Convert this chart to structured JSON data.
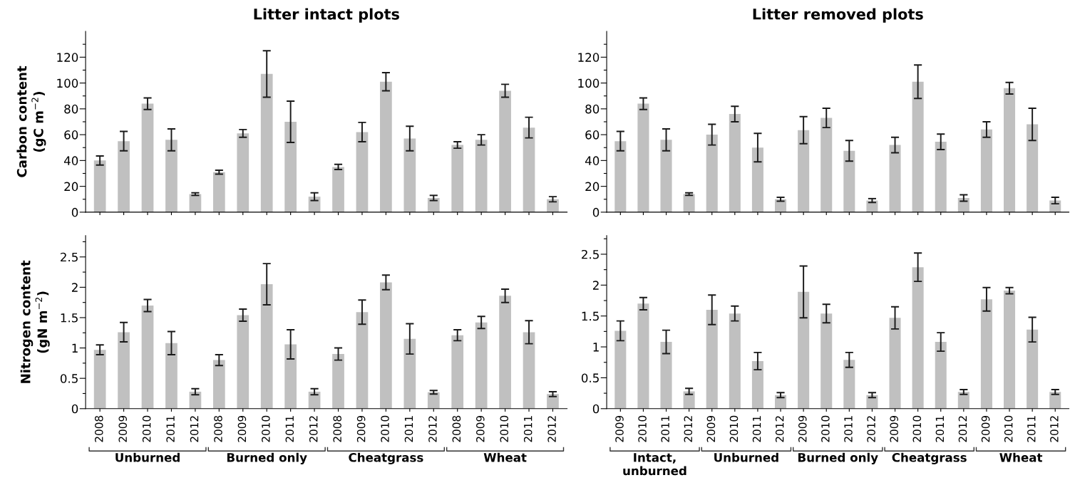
{
  "chart_data": [
    {
      "type": "bar",
      "title": "Litter intact plots",
      "ylabel": "Carbon content\n(gC m$^{−2}$)",
      "categories": [
        "2008",
        "2009",
        "2010",
        "2011",
        "2012",
        "2008",
        "2009",
        "2010",
        "2011",
        "2012",
        "2008",
        "2009",
        "2010",
        "2011",
        "2012",
        "2008",
        "2009",
        "2010",
        "2011",
        "2012"
      ],
      "tick_labels": "y",
      "color": "#c0c0c0",
      "values": [
        40,
        55,
        84,
        56,
        14,
        31,
        61,
        107,
        70,
        12,
        35,
        62,
        101,
        57,
        11,
        52,
        56,
        94,
        65.5,
        10
      ],
      "errors": [
        3.5,
        7.5,
        4.5,
        8.5,
        1,
        1.5,
        3,
        18,
        16,
        3,
        2,
        7.5,
        7,
        9.5,
        2,
        2.5,
        4,
        5,
        8,
        2
      ],
      "ylim": [
        0,
        140
      ],
      "yticks": [
        0,
        {
          "value": 10,
          "label": null
        },
        20,
        {
          "value": 30,
          "label": null
        },
        40,
        {
          "value": 50,
          "label": null
        },
        60,
        {
          "value": 70,
          "label": null
        },
        80,
        {
          "value": 90,
          "label": null
        },
        100,
        {
          "value": 110,
          "label": null
        },
        120,
        {
          "value": 130,
          "label": null
        }
      ],
      "grid": false
    },
    {
      "type": "bar",
      "title": "Litter removed plots",
      "categories": [
        "2009",
        "2010",
        "2011",
        "2012",
        "2009",
        "2010",
        "2011",
        "2012",
        "2009",
        "2010",
        "2011",
        "2012",
        "2009",
        "2010",
        "2011",
        "2012",
        "2009",
        "2010",
        "2011",
        "2012"
      ],
      "tick_labels": "y",
      "color": "#c0c0c0",
      "values": [
        55,
        84,
        56,
        14,
        60,
        76,
        50,
        10,
        63.5,
        73,
        47.5,
        9,
        52,
        101,
        54.5,
        11,
        64,
        96,
        68,
        9
      ],
      "errors": [
        7.5,
        4.5,
        8.5,
        1,
        8,
        6,
        11,
        1.5,
        10.5,
        7.5,
        8,
        1.5,
        6,
        13,
        6,
        2.5,
        6,
        4.5,
        12.5,
        2.5
      ],
      "ylim": [
        0,
        140
      ],
      "yticks": [
        0,
        {
          "value": 10,
          "label": null
        },
        20,
        {
          "value": 30,
          "label": null
        },
        40,
        {
          "value": 50,
          "label": null
        },
        60,
        {
          "value": 70,
          "label": null
        },
        80,
        {
          "value": 90,
          "label": null
        },
        100,
        {
          "value": 110,
          "label": null
        },
        120,
        {
          "value": 130,
          "label": null
        }
      ],
      "grid": false
    },
    {
      "type": "bar",
      "ylabel": "Nitrogen content\n(gN m$^{−2}$)",
      "categories": [
        "2008",
        "2009",
        "2010",
        "2011",
        "2012",
        "2008",
        "2009",
        "2010",
        "2011",
        "2012",
        "2008",
        "2009",
        "2010",
        "2011",
        "2012",
        "2008",
        "2009",
        "2010",
        "2011",
        "2012"
      ],
      "color": "#c0c0c0",
      "values": [
        0.97,
        1.26,
        1.7,
        1.08,
        0.28,
        0.8,
        1.54,
        2.05,
        1.06,
        0.28,
        0.9,
        1.59,
        2.08,
        1.15,
        0.27,
        1.21,
        1.42,
        1.86,
        1.26,
        0.24
      ],
      "errors": [
        0.08,
        0.16,
        0.1,
        0.19,
        0.05,
        0.09,
        0.1,
        0.34,
        0.24,
        0.05,
        0.1,
        0.2,
        0.12,
        0.25,
        0.03,
        0.09,
        0.1,
        0.11,
        0.19,
        0.04
      ],
      "ylim": [
        0,
        2.85
      ],
      "yticks": [
        0,
        {
          "value": 0.25,
          "label": null
        },
        0.5,
        {
          "value": 0.75,
          "label": null
        },
        1,
        {
          "value": 1.25,
          "label": null
        },
        1.5,
        {
          "value": 1.75,
          "label": null
        },
        2,
        {
          "value": 2.25,
          "label": null
        },
        2.5,
        {
          "value": 2.75,
          "label": null
        }
      ],
      "grid": false,
      "annotations": [
        "Unburned",
        "Burned only",
        "Cheatgrass",
        "Wheat"
      ]
    },
    {
      "type": "bar",
      "categories": [
        "2009",
        "2010",
        "2011",
        "2012",
        "2009",
        "2010",
        "2011",
        "2012",
        "2009",
        "2010",
        "2011",
        "2012",
        "2009",
        "2010",
        "2011",
        "2012",
        "2009",
        "2010",
        "2011",
        "2012"
      ],
      "color": "#c0c0c0",
      "values": [
        1.26,
        1.7,
        1.08,
        0.28,
        1.6,
        1.54,
        0.77,
        0.22,
        1.89,
        1.54,
        0.79,
        0.22,
        1.47,
        2.29,
        1.08,
        0.27,
        1.77,
        1.91,
        1.28,
        0.27
      ],
      "errors": [
        0.16,
        0.1,
        0.19,
        0.05,
        0.24,
        0.12,
        0.14,
        0.04,
        0.42,
        0.15,
        0.12,
        0.04,
        0.18,
        0.23,
        0.15,
        0.04,
        0.19,
        0.05,
        0.2,
        0.04
      ],
      "ylim": [
        0,
        2.8
      ],
      "yticks": [
        0,
        {
          "value": 0.25,
          "label": null
        },
        0.5,
        {
          "value": 0.75,
          "label": null
        },
        1,
        {
          "value": 1.25,
          "label": null
        },
        1.5,
        {
          "value": 1.75,
          "label": null
        },
        2,
        {
          "value": 2.25,
          "label": null
        },
        2.5,
        {
          "value": 2.75,
          "label": null
        }
      ],
      "grid": false,
      "annotations": [
        "Intact,\nunburned",
        "Unburned",
        "Burned only",
        "Cheatgrass",
        "Wheat"
      ]
    }
  ]
}
